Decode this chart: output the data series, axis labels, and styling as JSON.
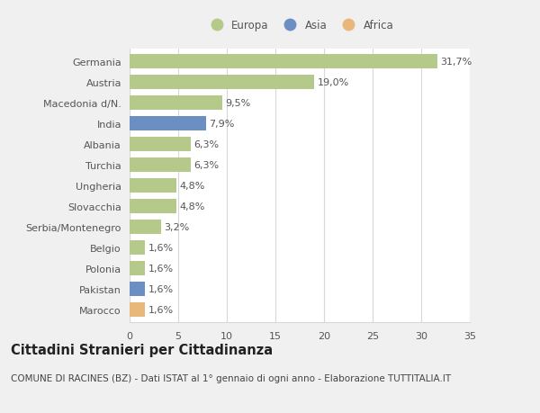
{
  "categories": [
    "Marocco",
    "Pakistan",
    "Polonia",
    "Belgio",
    "Serbia/Montenegro",
    "Slovacchia",
    "Ungheria",
    "Turchia",
    "Albania",
    "India",
    "Macedonia d/N.",
    "Austria",
    "Germania"
  ],
  "values": [
    1.6,
    1.6,
    1.6,
    1.6,
    3.2,
    4.8,
    4.8,
    6.3,
    6.3,
    7.9,
    9.5,
    19.0,
    31.7
  ],
  "labels": [
    "1,6%",
    "1,6%",
    "1,6%",
    "1,6%",
    "3,2%",
    "4,8%",
    "4,8%",
    "6,3%",
    "6,3%",
    "7,9%",
    "9,5%",
    "19,0%",
    "31,7%"
  ],
  "colors": [
    "#e8b87a",
    "#6b8fc2",
    "#b5c98a",
    "#b5c98a",
    "#b5c98a",
    "#b5c98a",
    "#b5c98a",
    "#b5c98a",
    "#b5c98a",
    "#6b8fc2",
    "#b5c98a",
    "#b5c98a",
    "#b5c98a"
  ],
  "legend_labels": [
    "Europa",
    "Asia",
    "Africa"
  ],
  "legend_colors": [
    "#b5c98a",
    "#6b8fc2",
    "#e8b87a"
  ],
  "title": "Cittadini Stranieri per Cittadinanza",
  "subtitle": "COMUNE DI RACINES (BZ) - Dati ISTAT al 1° gennaio di ogni anno - Elaborazione TUTTITALIA.IT",
  "xlim": [
    0,
    35
  ],
  "xticks": [
    0,
    5,
    10,
    15,
    20,
    25,
    30,
    35
  ],
  "figure_bg": "#f0f0f0",
  "plot_bg": "#ffffff",
  "grid_color": "#d8d8d8",
  "text_color": "#555555",
  "label_color": "#555555",
  "label_fontsize": 8.0,
  "tick_fontsize": 8.0,
  "title_fontsize": 10.5,
  "subtitle_fontsize": 7.5,
  "bar_height": 0.7
}
